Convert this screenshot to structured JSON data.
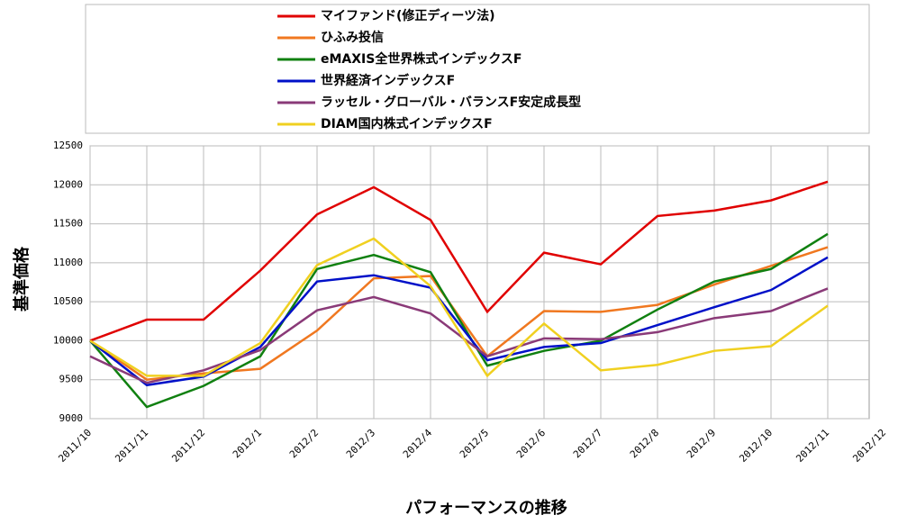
{
  "chart_data": {
    "type": "line",
    "y_label": "基準価格",
    "x_label": "パフォーマンスの推移",
    "categories": [
      "2011/10",
      "2011/11",
      "2011/12",
      "2012/1",
      "2012/2",
      "2012/3",
      "2012/4",
      "2012/5",
      "2012/6",
      "2012/7",
      "2012/8",
      "2012/9",
      "2012/10",
      "2012/11",
      "2012/12"
    ],
    "ylim": [
      9000,
      12500
    ],
    "yticks": [
      9000,
      9500,
      10000,
      10500,
      11000,
      11500,
      12000,
      12500
    ],
    "grid": true,
    "legend": "top",
    "series": [
      {
        "name": "マイファンド(修正ディーツ法)",
        "color": "#e00000",
        "values": [
          10000,
          10270,
          10270,
          10900,
          11620,
          11970,
          11550,
          10370,
          11130,
          10980,
          11600,
          11670,
          11800,
          12040,
          null
        ]
      },
      {
        "name": "ひふみ投信",
        "color": "#f07820",
        "values": [
          10000,
          9500,
          9580,
          9640,
          10130,
          10800,
          10830,
          9800,
          10380,
          10370,
          10460,
          10720,
          10960,
          11200,
          null
        ]
      },
      {
        "name": "eMAXIS全世界株式インデックスF",
        "color": "#108010",
        "values": [
          10000,
          9150,
          9420,
          9800,
          10920,
          11100,
          10880,
          9680,
          9870,
          10000,
          10400,
          10760,
          10920,
          11370,
          null
        ]
      },
      {
        "name": "世界経済インデックスF",
        "color": "#0010c8",
        "values": [
          10000,
          9430,
          9540,
          9920,
          10760,
          10840,
          10680,
          9750,
          9920,
          9970,
          10200,
          10430,
          10650,
          11070,
          null
        ]
      },
      {
        "name": "ラッセル・グローバル・バランスF安定成長型",
        "color": "#8a3a78",
        "values": [
          9800,
          9460,
          9620,
          9880,
          10390,
          10560,
          10350,
          9800,
          10030,
          10020,
          10110,
          10290,
          10380,
          10670,
          null
        ]
      },
      {
        "name": "DIAM国内株式インデックスF",
        "color": "#f0d020",
        "values": [
          10000,
          9550,
          9550,
          9970,
          10970,
          11310,
          10700,
          9550,
          10220,
          9620,
          9690,
          9870,
          9930,
          10450,
          null
        ]
      }
    ]
  }
}
